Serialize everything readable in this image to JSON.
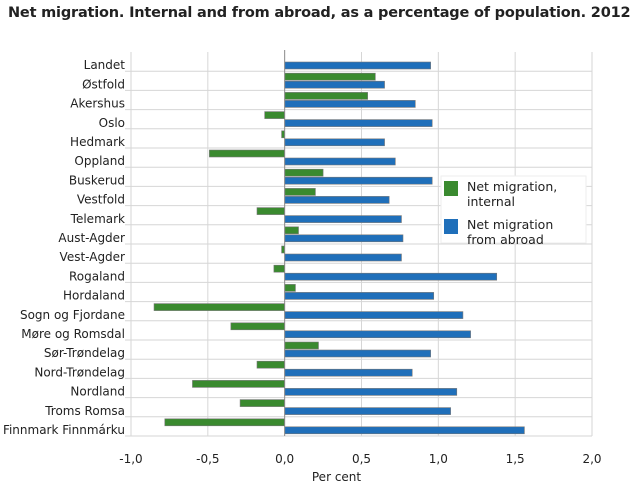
{
  "chart_data": {
    "type": "bar",
    "orientation": "horizontal",
    "title": "Net migration. Internal and from abroad, as a percentage of population. 2012",
    "xlabel": "Per cent",
    "ylabel": "",
    "xlim": [
      -1.0,
      2.0
    ],
    "xticks": [
      -1.0,
      -0.5,
      0.0,
      0.5,
      1.0,
      1.5,
      2.0
    ],
    "xtick_labels": [
      "-1,0",
      "-0,5",
      "0,0",
      "0,5",
      "1,0",
      "1,5",
      "2,0"
    ],
    "grid": true,
    "legend_placement": "right",
    "categories": [
      "Landet",
      "Østfold",
      "Akershus",
      "Oslo",
      "Hedmark",
      "Oppland",
      "Buskerud",
      "Vestfold",
      "Telemark",
      "Aust-Agder",
      "Vest-Agder",
      "Rogaland",
      "Hordaland",
      "Sogn og Fjordane",
      "Møre og Romsdal",
      "Sør-Trøndelag",
      "Nord-Trøndelag",
      "Nordland",
      "Troms Romsa",
      "Finnmark Finnmárku"
    ],
    "series": [
      {
        "name": "Net migration, internal",
        "legend_lines": [
          "Net migration,",
          "internal"
        ],
        "color": "#3a8a2f",
        "values": [
          0,
          0.59,
          0.54,
          -0.13,
          -0.02,
          -0.49,
          0.25,
          0.2,
          -0.18,
          0.09,
          -0.02,
          -0.07,
          0.07,
          -0.85,
          -0.35,
          0.22,
          -0.18,
          -0.6,
          -0.29,
          -0.78
        ]
      },
      {
        "name": "Net migration from abroad",
        "legend_lines": [
          "Net migration",
          "from abroad"
        ],
        "color": "#1f6fba",
        "values": [
          0.95,
          0.65,
          0.85,
          0.96,
          0.65,
          0.72,
          0.96,
          0.68,
          0.76,
          0.77,
          0.76,
          1.38,
          0.97,
          1.16,
          1.21,
          0.95,
          0.83,
          1.12,
          1.08,
          1.56
        ]
      }
    ]
  }
}
